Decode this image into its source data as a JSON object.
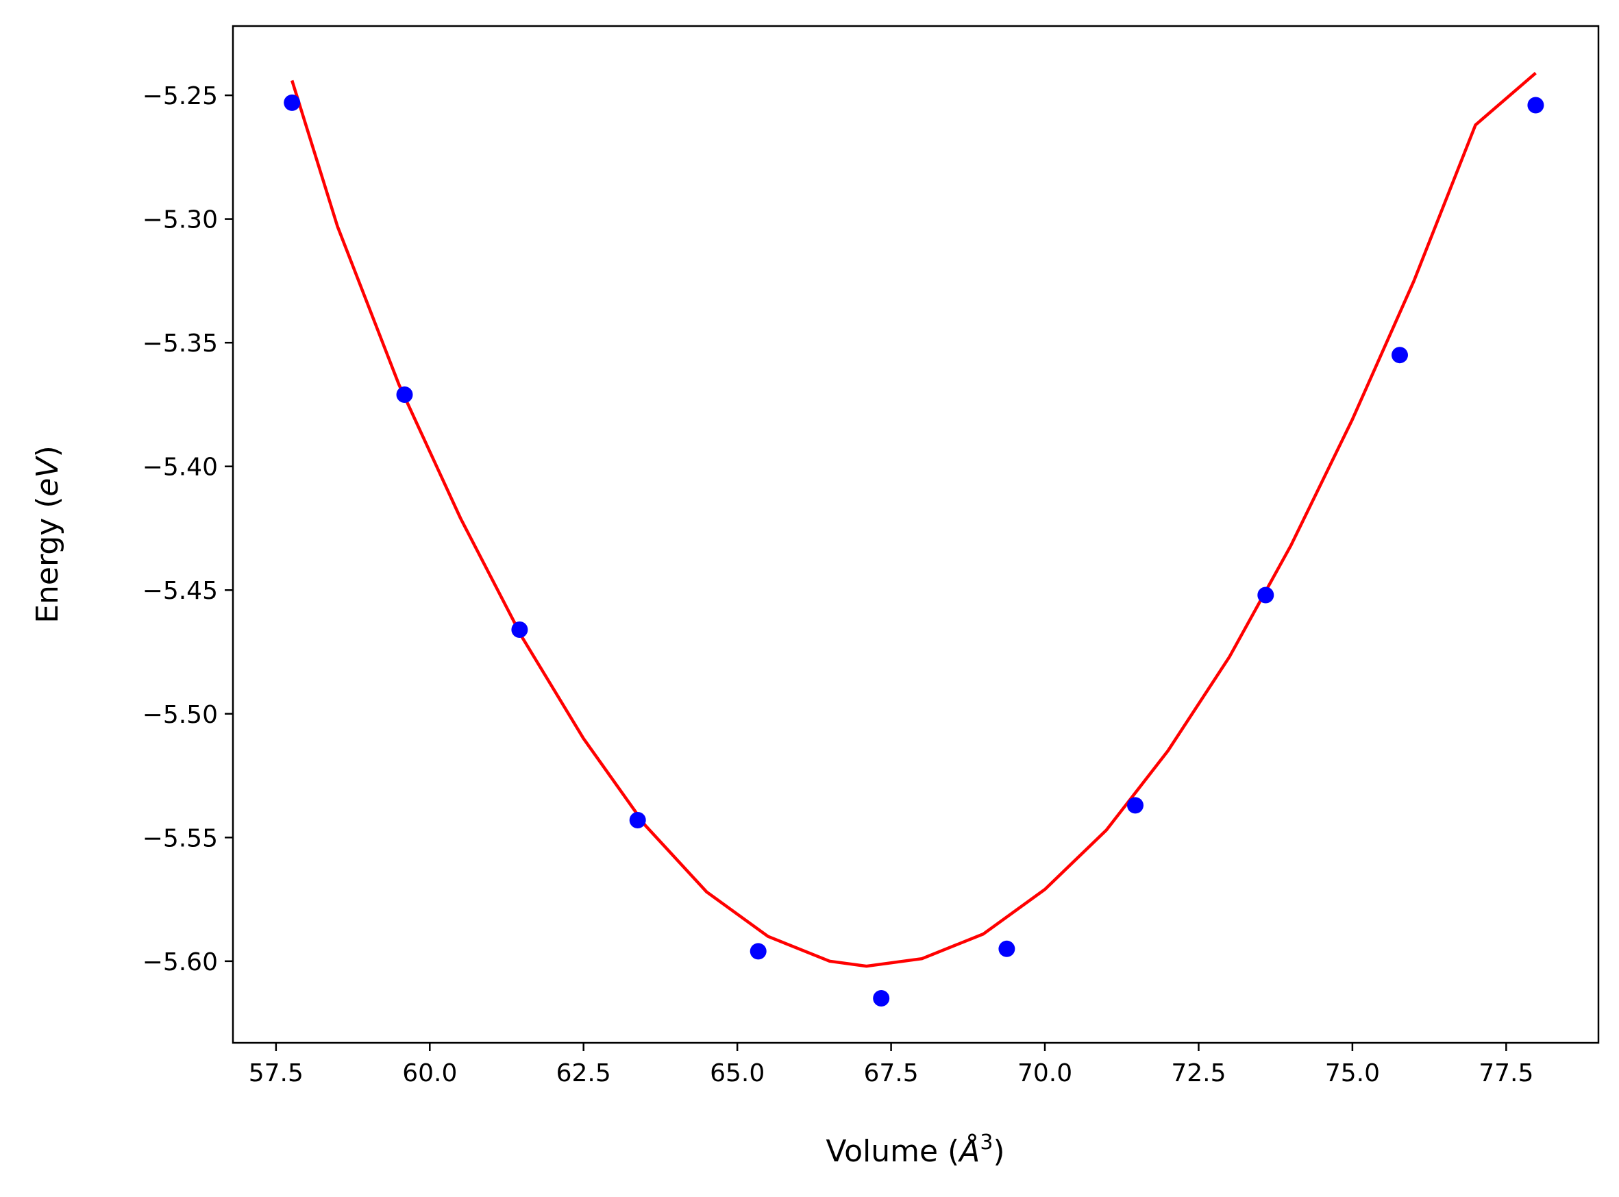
{
  "chart_data": {
    "type": "scatter",
    "xlabel": "Volume (Å³)",
    "ylabel": "Energy (eV)",
    "xlabel_parts": {
      "prefix": "Volume (",
      "unit_base": "Å",
      "unit_sup": "3",
      "suffix": ")"
    },
    "ylabel_parts": {
      "prefix": "Energy (",
      "unit": "eV",
      "suffix": ")"
    },
    "xlim": [
      56.8,
      79.0
    ],
    "ylim": [
      -5.633,
      -5.222
    ],
    "x_ticks": [
      57.5,
      60.0,
      62.5,
      65.0,
      67.5,
      70.0,
      72.5,
      75.0,
      77.5
    ],
    "x_tick_labels": [
      "57.5",
      "60.0",
      "62.5",
      "65.0",
      "67.5",
      "70.0",
      "72.5",
      "75.0",
      "77.5"
    ],
    "y_ticks": [
      -5.25,
      -5.3,
      -5.35,
      -5.4,
      -5.45,
      -5.5,
      -5.55,
      -5.6
    ],
    "y_tick_labels": [
      "−5.25",
      "−5.30",
      "−5.35",
      "−5.40",
      "−5.45",
      "−5.50",
      "−5.55",
      "−5.60"
    ],
    "grid": false,
    "series": [
      {
        "kind": "scatter",
        "color": "#0000ff",
        "x": [
          57.76,
          59.59,
          61.46,
          63.38,
          65.34,
          67.34,
          69.38,
          71.47,
          73.59,
          75.77,
          77.98
        ],
        "y": [
          -5.253,
          -5.371,
          -5.466,
          -5.543,
          -5.596,
          -5.615,
          -5.595,
          -5.537,
          -5.452,
          -5.355,
          -5.254
        ]
      },
      {
        "kind": "line",
        "color": "#ff0000",
        "x": [
          57.76,
          58.5,
          59.5,
          60.5,
          61.5,
          62.5,
          63.5,
          64.5,
          65.5,
          66.5,
          67.1,
          68.0,
          69.0,
          70.0,
          71.0,
          72.0,
          73.0,
          74.0,
          75.0,
          76.0,
          77.0,
          77.98
        ],
        "y": [
          -5.244,
          -5.303,
          -5.367,
          -5.421,
          -5.469,
          -5.51,
          -5.545,
          -5.572,
          -5.59,
          -5.6,
          -5.602,
          -5.599,
          -5.589,
          -5.571,
          -5.547,
          -5.515,
          -5.477,
          -5.432,
          -5.381,
          -5.325,
          -5.262,
          -5.241
        ]
      }
    ]
  }
}
